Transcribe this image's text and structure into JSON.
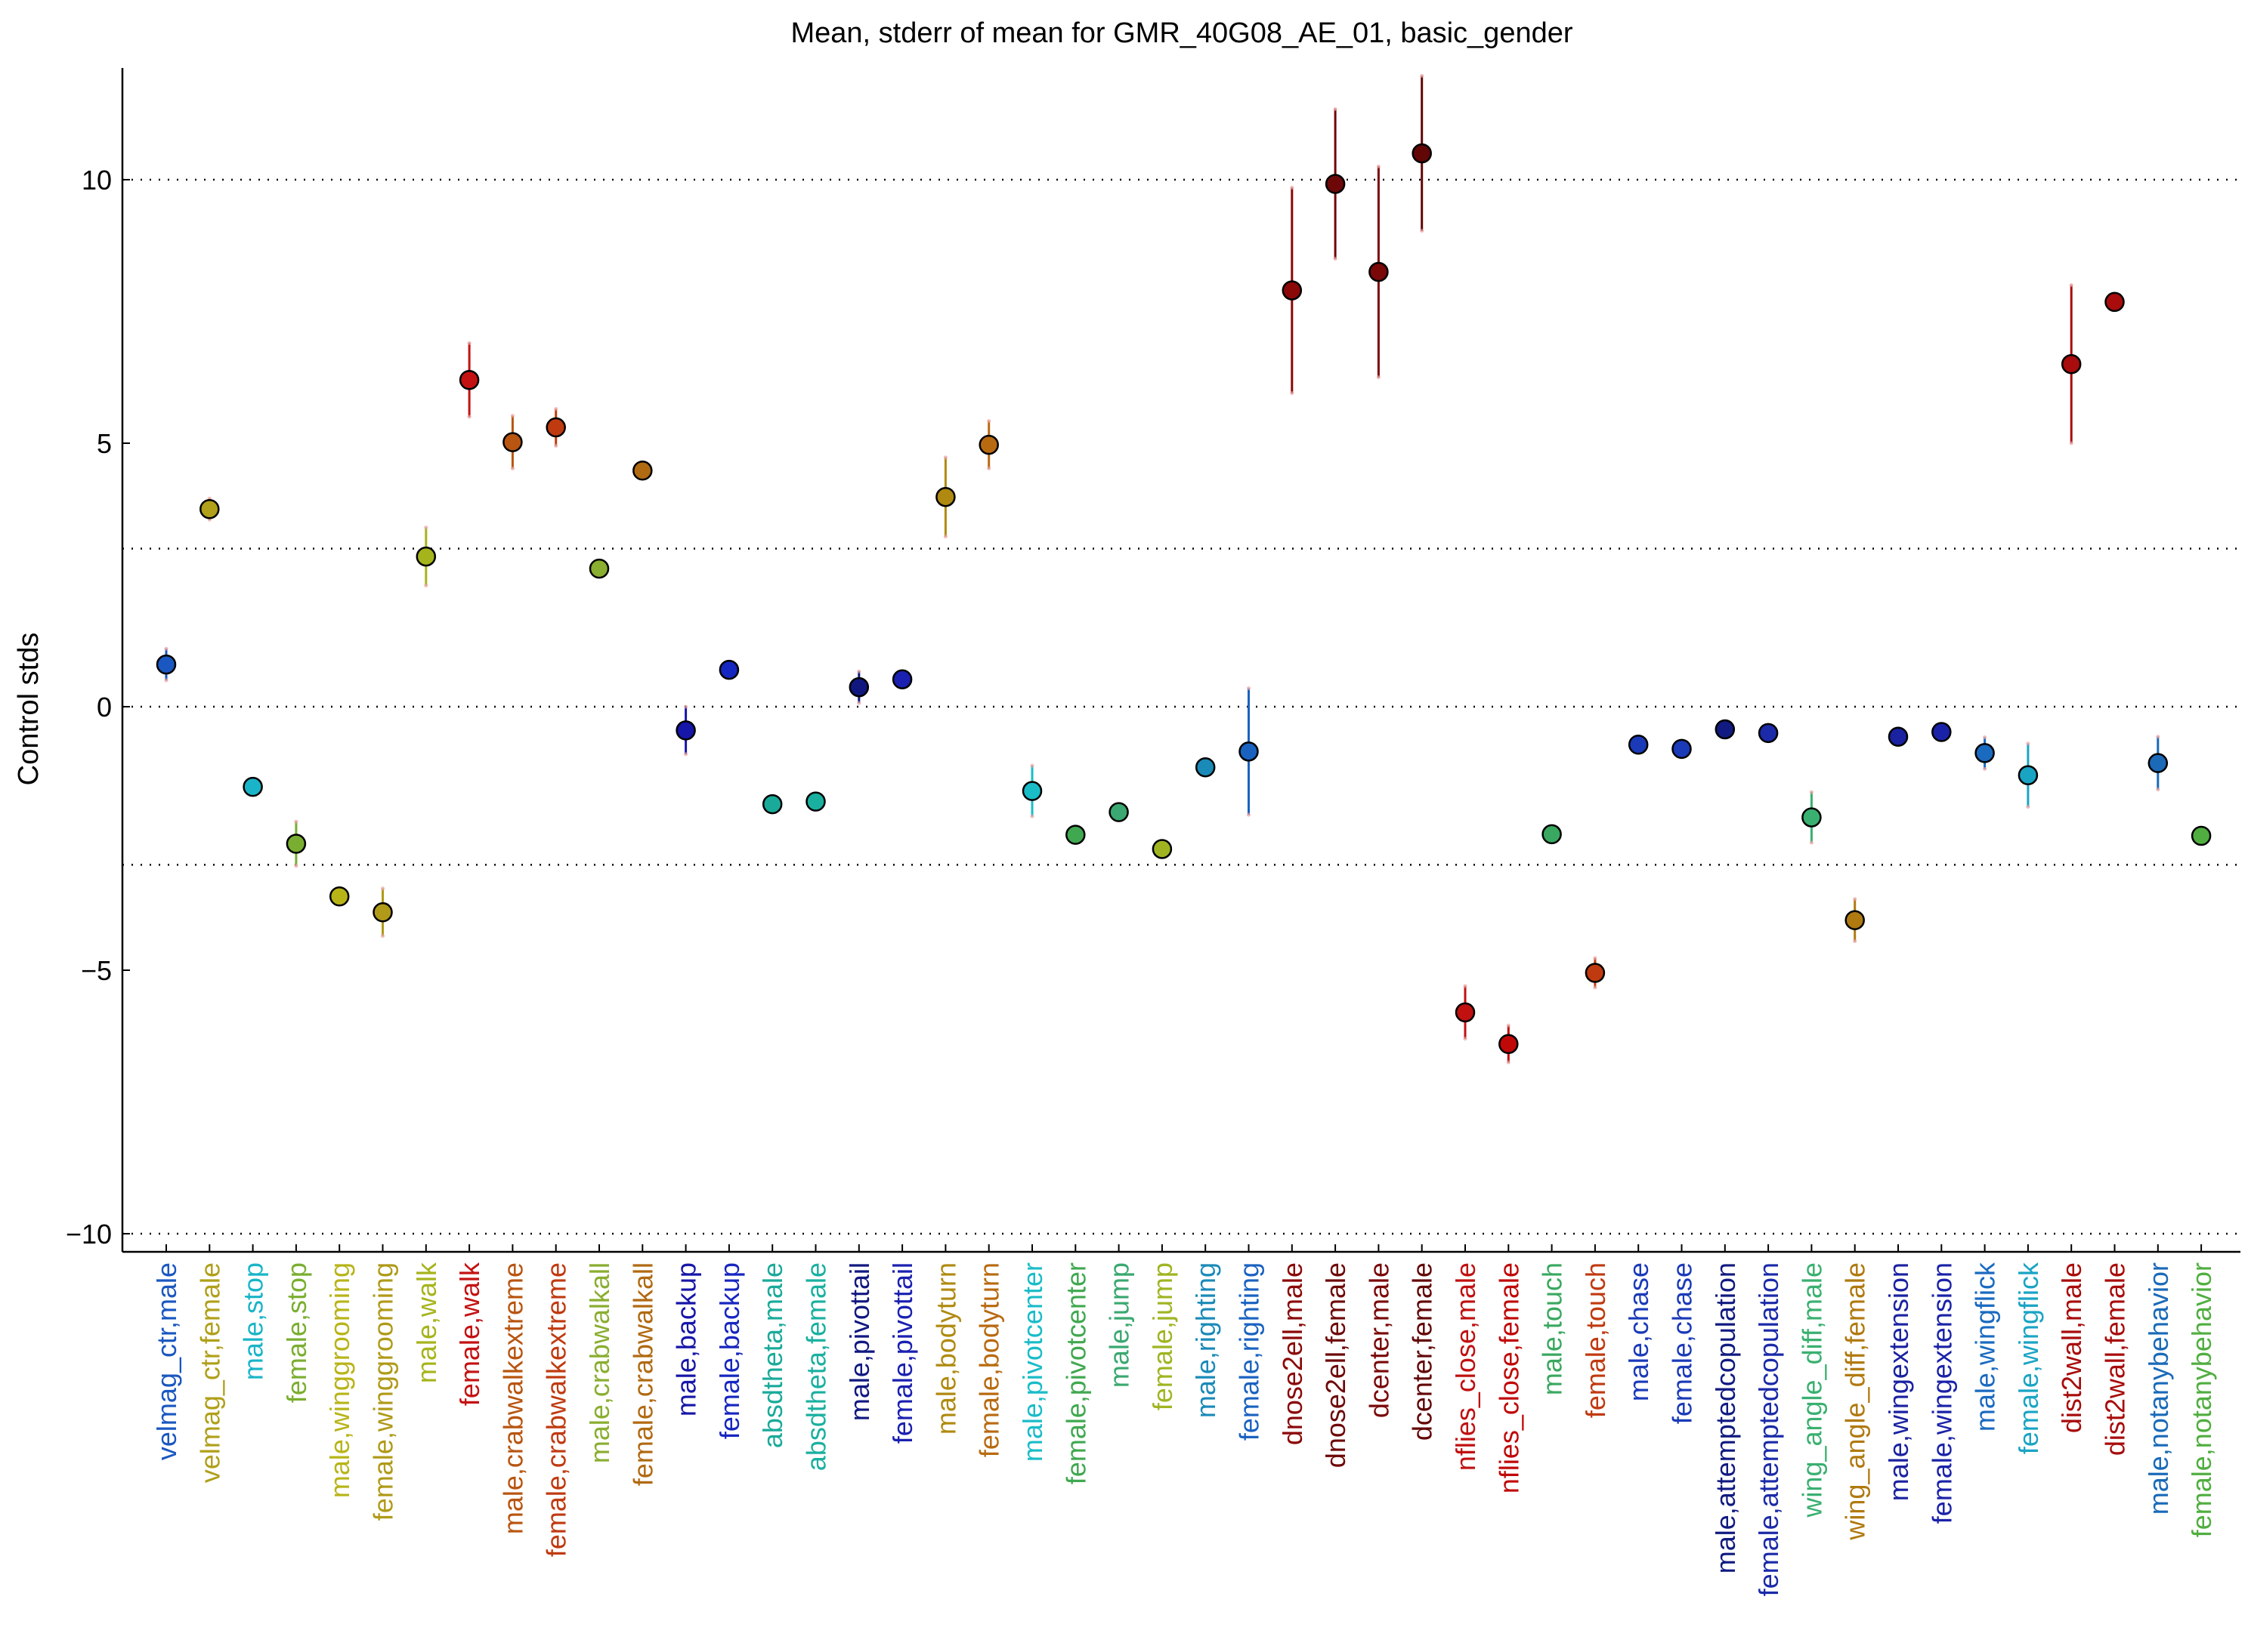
{
  "chart_data": {
    "type": "scatter",
    "title": "Mean, stderr of mean for GMR_40G08_AE_01, basic_gender",
    "xlabel": "",
    "ylabel": "Control stds",
    "ylim": [
      -10.2,
      12.2
    ],
    "yticks": [
      -10,
      -5,
      0,
      5,
      10
    ],
    "ytick_labels": [
      "−10",
      "−5",
      "0",
      "5",
      "10"
    ],
    "reference_lines": [
      -10,
      -3,
      0,
      3,
      10
    ],
    "grid": false,
    "legend": "none",
    "points": [
      {
        "label": "velmag_ctr,male",
        "mean": 0.8,
        "err": 0.3,
        "color": "#1a57c0"
      },
      {
        "label": "velmag_ctr,female",
        "mean": 3.75,
        "err": 0.2,
        "color": "#b0a01a"
      },
      {
        "label": "male,stop",
        "mean": -1.52,
        "err": 0.1,
        "color": "#1ab4c8"
      },
      {
        "label": "female,stop",
        "mean": -2.6,
        "err": 0.42,
        "color": "#7aae30"
      },
      {
        "label": "male,winggrooming",
        "mean": -3.6,
        "err": 0.1,
        "color": "#b8b418"
      },
      {
        "label": "female,winggrooming",
        "mean": -3.9,
        "err": 0.45,
        "color": "#b09a18"
      },
      {
        "label": "male,walk",
        "mean": 2.85,
        "err": 0.55,
        "color": "#a6b41c"
      },
      {
        "label": "female,walk",
        "mean": 6.2,
        "err": 0.7,
        "color": "#c41212"
      },
      {
        "label": "male,crabwalkextreme",
        "mean": 5.02,
        "err": 0.5,
        "color": "#b85510"
      },
      {
        "label": "female,crabwalkextreme",
        "mean": 5.3,
        "err": 0.35,
        "color": "#c03a10"
      },
      {
        "label": "male,crabwalkall",
        "mean": 2.62,
        "err": 0.08,
        "color": "#8aae30"
      },
      {
        "label": "female,crabwalkall",
        "mean": 4.48,
        "err": 0.08,
        "color": "#b06a12"
      },
      {
        "label": "male,backup",
        "mean": -0.45,
        "err": 0.45,
        "color": "#1616a8"
      },
      {
        "label": "female,backup",
        "mean": 0.7,
        "err": 0.08,
        "color": "#1626c0"
      },
      {
        "label": "absdtheta,male",
        "mean": -1.85,
        "err": 0.08,
        "color": "#1aaa9a"
      },
      {
        "label": "absdtheta,female",
        "mean": -1.8,
        "err": 0.08,
        "color": "#1ab0a0"
      },
      {
        "label": "male,pivottail",
        "mean": 0.37,
        "err": 0.3,
        "color": "#101880"
      },
      {
        "label": "female,pivottail",
        "mean": 0.52,
        "err": 0.08,
        "color": "#1a20b0"
      },
      {
        "label": "male,bodyturn",
        "mean": 3.98,
        "err": 0.75,
        "color": "#b08a10"
      },
      {
        "label": "female,bodyturn",
        "mean": 4.97,
        "err": 0.45,
        "color": "#b86a10"
      },
      {
        "label": "male,pivotcenter",
        "mean": -1.6,
        "err": 0.48,
        "color": "#1abcc8"
      },
      {
        "label": "female,pivotcenter",
        "mean": -2.43,
        "err": 0.08,
        "color": "#40a850"
      },
      {
        "label": "male,jump",
        "mean": -2.0,
        "err": 0.08,
        "color": "#3aa870"
      },
      {
        "label": "female,jump",
        "mean": -2.7,
        "err": 0.08,
        "color": "#a0b422"
      },
      {
        "label": "male,righting",
        "mean": -1.15,
        "err": 0.08,
        "color": "#1a8ab8"
      },
      {
        "label": "female,righting",
        "mean": -0.85,
        "err": 1.2,
        "color": "#1a62c0"
      },
      {
        "label": "dnose2ell,male",
        "mean": 7.9,
        "err": 1.95,
        "color": "#8a0808"
      },
      {
        "label": "dnose2ell,female",
        "mean": 9.92,
        "err": 1.42,
        "color": "#6e0808"
      },
      {
        "label": "dcenter,male",
        "mean": 8.25,
        "err": 2.0,
        "color": "#7a0808"
      },
      {
        "label": "dcenter,female",
        "mean": 10.5,
        "err": 1.47,
        "color": "#620606"
      },
      {
        "label": "nflies_close,male",
        "mean": -5.8,
        "err": 0.5,
        "color": "#c01010"
      },
      {
        "label": "nflies_close,female",
        "mean": -6.4,
        "err": 0.35,
        "color": "#c00808"
      },
      {
        "label": "male,touch",
        "mean": -2.42,
        "err": 0.08,
        "color": "#3aa860"
      },
      {
        "label": "female,touch",
        "mean": -5.05,
        "err": 0.28,
        "color": "#c03a10"
      },
      {
        "label": "male,chase",
        "mean": -0.72,
        "err": 0.08,
        "color": "#1a3ab8"
      },
      {
        "label": "female,chase",
        "mean": -0.8,
        "err": 0.08,
        "color": "#1a3ab8"
      },
      {
        "label": "male,attemptedcopulation",
        "mean": -0.43,
        "err": 0.08,
        "color": "#101a80"
      },
      {
        "label": "female,attemptedcopulation",
        "mean": -0.5,
        "err": 0.08,
        "color": "#1a2aa8"
      },
      {
        "label": "wing_angle_diff,male",
        "mean": -2.1,
        "err": 0.48,
        "color": "#3ab070"
      },
      {
        "label": "wing_angle_diff,female",
        "mean": -4.05,
        "err": 0.4,
        "color": "#b07a10"
      },
      {
        "label": "male,wingextension",
        "mean": -0.57,
        "err": 0.08,
        "color": "#1a22a0"
      },
      {
        "label": "female,wingextension",
        "mean": -0.48,
        "err": 0.08,
        "color": "#1a22a8"
      },
      {
        "label": "male,wingflick",
        "mean": -0.88,
        "err": 0.3,
        "color": "#1a6ac0"
      },
      {
        "label": "female,wingflick",
        "mean": -1.3,
        "err": 0.6,
        "color": "#1aa4c4"
      },
      {
        "label": "dist2wall,male",
        "mean": 6.5,
        "err": 1.5,
        "color": "#a80c0c"
      },
      {
        "label": "dist2wall,female",
        "mean": 7.68,
        "err": 0.08,
        "color": "#a80c0c"
      },
      {
        "label": "male,notanybehavior",
        "mean": -1.07,
        "err": 0.5,
        "color": "#1a6ab8"
      },
      {
        "label": "female,notanybehavior",
        "mean": -2.45,
        "err": 0.08,
        "color": "#50ae40"
      }
    ]
  }
}
